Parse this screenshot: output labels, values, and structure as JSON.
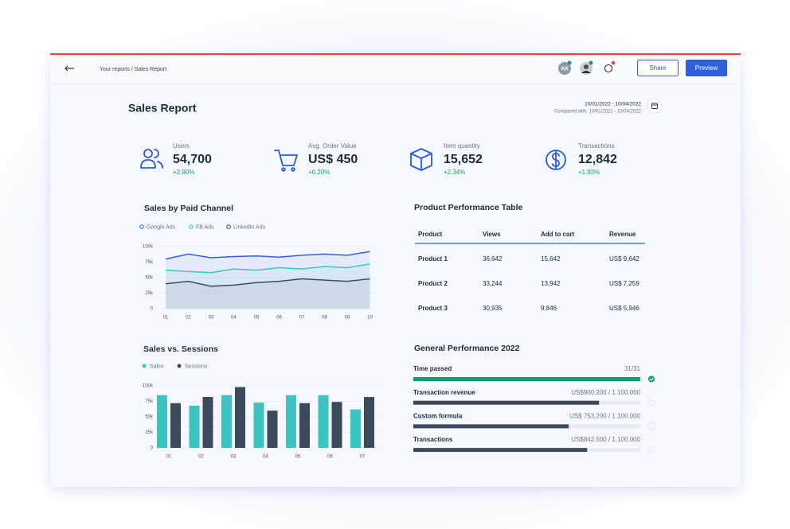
{
  "header": {
    "breadcrumb": "Your reports / Sales Report",
    "avatar": "AK",
    "share": "Share",
    "preview": "Preview"
  },
  "report": {
    "title": "Sales Report",
    "date_range": "10/01/2022 - 10/04/2022",
    "compared": "Compared with: 10/01/2021 - 10/04/2022"
  },
  "kpis": [
    {
      "label": "Users",
      "value": "54,700",
      "change": "+2.90%"
    },
    {
      "label": "Avg. Order Value",
      "value": "US$ 450",
      "change": "+0.20%"
    },
    {
      "label": "Item quantity",
      "value": "15,652",
      "change": "+2.34%"
    },
    {
      "label": "Transactions",
      "value": "12,842",
      "change": "+1.83%"
    }
  ],
  "line_chart": {
    "type": "line",
    "title": "Sales by Paid Channel",
    "categories": [
      "01",
      "02",
      "03",
      "04",
      "05",
      "06",
      "07",
      "08",
      "09",
      "10"
    ],
    "series": [
      {
        "name": "Google Ads",
        "color": "#2f5fdc",
        "values": [
          80000,
          88000,
          82000,
          84000,
          85000,
          83000,
          86000,
          88000,
          86000,
          92000
        ]
      },
      {
        "name": "FB Ads",
        "color": "#3cc5c0",
        "values": [
          62000,
          60000,
          58000,
          64000,
          62000,
          66000,
          64000,
          68000,
          66000,
          72000
        ]
      },
      {
        "name": "LinkedIn Ads",
        "color": "#3d4a5c",
        "values": [
          40000,
          44000,
          36000,
          38000,
          42000,
          44000,
          48000,
          46000,
          44000,
          48000
        ]
      }
    ],
    "ylim": [
      0,
      100000
    ],
    "yticks": [
      0,
      {
        "value": 25000,
        "label": "25k"
      },
      {
        "value": 50000,
        "label": "50k"
      },
      {
        "value": 75000,
        "label": "75k"
      },
      {
        "value": 100000,
        "label": "100k"
      }
    ],
    "grid": true
  },
  "table": {
    "title": "Product Performance Table",
    "columns": [
      "Product",
      "Views",
      "Add to cart",
      "Revenue"
    ],
    "rows": [
      [
        "Product 1",
        "36,642",
        "15,642",
        "US$ 9,642"
      ],
      [
        "Product 2",
        "33,244",
        "13,942",
        "US$ 7,259"
      ],
      [
        "Product 3",
        "30,935",
        "9,846",
        "US$ 5,946"
      ]
    ]
  },
  "bar_chart": {
    "type": "bar",
    "title": "Sales vs. Sessions",
    "categories": [
      "01",
      "02",
      "03",
      "04",
      "05",
      "06",
      "07"
    ],
    "series": [
      {
        "name": "Sales",
        "color": "#3cc5c0",
        "values": [
          85000,
          68000,
          85000,
          73000,
          85000,
          85000,
          62000
        ]
      },
      {
        "name": "Sessions",
        "color": "#3d4a5c",
        "values": [
          72000,
          82000,
          98000,
          60000,
          72000,
          74000,
          82000
        ]
      }
    ],
    "ylim": [
      0,
      100000
    ],
    "yticks": [
      0,
      {
        "value": 25000,
        "label": "25k"
      },
      {
        "value": 50000,
        "label": "50k"
      },
      {
        "value": 75000,
        "label": "75k"
      },
      {
        "value": 100000,
        "label": "100k"
      }
    ],
    "grid": true
  },
  "performance": {
    "title": "General Performance 2022",
    "items": [
      {
        "label": "Time passed",
        "current": 31,
        "target": 31,
        "value_label": "31/31",
        "color": "#0e9f6e",
        "done": true
      },
      {
        "label": "Transaction revenue",
        "current": 900200,
        "target": 1100000,
        "value_label": "US$900.200 / 1.100.000",
        "color": "#3d4a5c",
        "done": false
      },
      {
        "label": "Custom formula",
        "current": 753200,
        "target": 1100000,
        "value_label": "US$ 753.200 / 1.100.000",
        "color": "#3d4a5c",
        "done": false
      },
      {
        "label": "Transactions",
        "current": 842500,
        "target": 1100000,
        "value_label": "US$842.500 / 1.100.000",
        "color": "#3d4a5c",
        "done": false
      }
    ]
  }
}
